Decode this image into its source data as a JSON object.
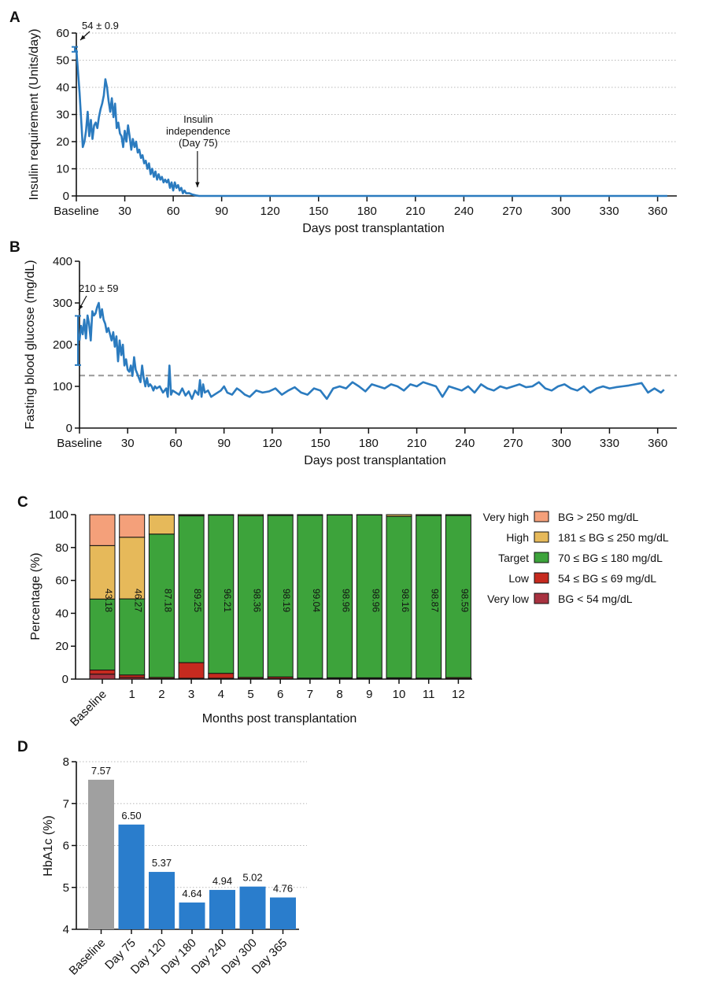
{
  "chart_data": [
    {
      "panel": "A",
      "type": "line",
      "xlabel": "Days post transplantation",
      "ylabel": "Insulin requirement (Units/day)",
      "ylim": [
        0,
        60
      ],
      "yticks": [
        0,
        10,
        20,
        30,
        40,
        50,
        60
      ],
      "xticks": [
        {
          "value": 0,
          "label": "Baseline"
        },
        {
          "value": 30,
          "label": "30"
        },
        {
          "value": 60,
          "label": "60"
        },
        {
          "value": 90,
          "label": "90"
        },
        {
          "value": 120,
          "label": "120"
        },
        {
          "value": 150,
          "label": "150"
        },
        {
          "value": 180,
          "label": "180"
        },
        {
          "value": 210,
          "label": "210"
        },
        {
          "value": 240,
          "label": "240"
        },
        {
          "value": 270,
          "label": "270"
        },
        {
          "value": 300,
          "label": "300"
        },
        {
          "value": 330,
          "label": "330"
        },
        {
          "value": 360,
          "label": "360"
        }
      ],
      "xlim": [
        0,
        368
      ],
      "grid": "horizontal-dotted",
      "color": "#2b7bbf",
      "baseline": {
        "mean": 54,
        "error": 0.9,
        "label": "54 ± 0.9"
      },
      "annotation": {
        "lines": [
          "Insulin",
          "independence",
          "(Day 75)"
        ],
        "x": 75
      },
      "series": {
        "x": [
          0,
          2,
          4,
          5,
          6,
          7,
          8,
          9,
          10,
          11,
          12,
          13,
          14,
          15,
          16,
          17,
          18,
          19,
          20,
          21,
          22,
          23,
          24,
          25,
          26,
          27,
          28,
          29,
          30,
          31,
          32,
          33,
          34,
          35,
          36,
          37,
          38,
          39,
          40,
          41,
          42,
          43,
          44,
          45,
          46,
          47,
          48,
          49,
          50,
          51,
          52,
          53,
          54,
          55,
          56,
          57,
          58,
          59,
          60,
          61,
          62,
          63,
          64,
          65,
          66,
          67,
          68,
          69,
          70,
          72,
          74,
          76,
          80,
          100,
          150,
          200,
          250,
          300,
          350,
          366
        ],
        "y": [
          54,
          38,
          18,
          20,
          24,
          31,
          22,
          28,
          21,
          26,
          27,
          25,
          29,
          32,
          34,
          37,
          43,
          40,
          35,
          31,
          36,
          29,
          34,
          25,
          27,
          23,
          22,
          18,
          24,
          20,
          26,
          22,
          17,
          21,
          18,
          20,
          16,
          17,
          14,
          15,
          12,
          13,
          10,
          12,
          8,
          10,
          7,
          9,
          6,
          8,
          6,
          7,
          5,
          6,
          5,
          6,
          3,
          5,
          2,
          5,
          3,
          4,
          2,
          3,
          1,
          2,
          1,
          1,
          1,
          0.5,
          0.2,
          0,
          0,
          0,
          0,
          0,
          0,
          0,
          0,
          0
        ]
      }
    },
    {
      "panel": "B",
      "type": "line",
      "xlabel": "Days post transplantation",
      "ylabel": "Fasting blood glucose (mg/dL)",
      "ylim": [
        0,
        400
      ],
      "yticks": [
        0,
        100,
        200,
        300,
        400
      ],
      "xticks": [
        {
          "value": 0,
          "label": "Baseline"
        },
        {
          "value": 30,
          "label": "30"
        },
        {
          "value": 60,
          "label": "60"
        },
        {
          "value": 90,
          "label": "90"
        },
        {
          "value": 120,
          "label": "120"
        },
        {
          "value": 150,
          "label": "150"
        },
        {
          "value": 180,
          "label": "180"
        },
        {
          "value": 210,
          "label": "210"
        },
        {
          "value": 240,
          "label": "240"
        },
        {
          "value": 270,
          "label": "270"
        },
        {
          "value": 300,
          "label": "300"
        },
        {
          "value": 330,
          "label": "330"
        },
        {
          "value": 360,
          "label": "360"
        }
      ],
      "xlim": [
        0,
        368
      ],
      "color": "#2b7bbf",
      "reference_line": 126,
      "baseline": {
        "mean": 210,
        "error": 59,
        "label": "210 ± 59"
      },
      "series": {
        "x": [
          0,
          1,
          2,
          3,
          4,
          5,
          6,
          7,
          8,
          9,
          10,
          11,
          12,
          13,
          14,
          15,
          16,
          17,
          18,
          19,
          20,
          21,
          22,
          23,
          24,
          25,
          26,
          27,
          28,
          29,
          30,
          31,
          32,
          33,
          34,
          35,
          36,
          37,
          38,
          39,
          40,
          41,
          42,
          43,
          44,
          45,
          46,
          47,
          48,
          50,
          52,
          54,
          55,
          56,
          57,
          58,
          60,
          62,
          64,
          66,
          68,
          70,
          72,
          74,
          75,
          76,
          77,
          78,
          80,
          82,
          84,
          86,
          88,
          90,
          92,
          95,
          98,
          100,
          103,
          106,
          110,
          114,
          118,
          122,
          126,
          130,
          134,
          138,
          142,
          146,
          150,
          154,
          158,
          162,
          166,
          170,
          174,
          178,
          182,
          186,
          190,
          194,
          198,
          202,
          206,
          210,
          214,
          218,
          222,
          226,
          230,
          234,
          238,
          242,
          246,
          250,
          254,
          258,
          262,
          266,
          270,
          274,
          278,
          282,
          286,
          290,
          294,
          298,
          302,
          306,
          310,
          314,
          318,
          322,
          326,
          330,
          334,
          338,
          342,
          346,
          350,
          354,
          358,
          362,
          364
        ],
        "y": [
          210,
          245,
          225,
          260,
          215,
          270,
          250,
          210,
          280,
          270,
          275,
          290,
          300,
          265,
          285,
          260,
          250,
          230,
          240,
          225,
          210,
          230,
          195,
          220,
          160,
          210,
          175,
          200,
          150,
          165,
          140,
          135,
          150,
          125,
          170,
          140,
          130,
          120,
          110,
          150,
          120,
          100,
          120,
          100,
          105,
          100,
          90,
          100,
          95,
          100,
          85,
          95,
          75,
          150,
          80,
          90,
          85,
          80,
          95,
          78,
          88,
          70,
          90,
          80,
          115,
          75,
          105,
          85,
          90,
          75,
          80,
          85,
          90,
          100,
          85,
          80,
          95,
          90,
          80,
          75,
          90,
          85,
          88,
          95,
          80,
          90,
          98,
          85,
          80,
          95,
          90,
          70,
          95,
          100,
          95,
          110,
          100,
          88,
          105,
          100,
          95,
          105,
          100,
          90,
          105,
          100,
          110,
          105,
          100,
          75,
          100,
          95,
          90,
          100,
          85,
          105,
          95,
          90,
          100,
          95,
          100,
          105,
          98,
          100,
          110,
          95,
          90,
          100,
          105,
          95,
          90,
          100,
          85,
          95,
          100,
          95,
          98,
          100,
          102,
          105,
          108,
          85,
          95,
          85,
          92
        ]
      }
    },
    {
      "panel": "C",
      "type": "bar",
      "stacked": true,
      "xlabel": "Months post transplantation",
      "ylabel": "Percentage (%)",
      "ylim": [
        0,
        100
      ],
      "yticks": [
        0,
        20,
        40,
        60,
        80,
        100
      ],
      "categories": [
        "Baseline",
        "1",
        "2",
        "3",
        "4",
        "5",
        "6",
        "7",
        "8",
        "9",
        "10",
        "11",
        "12"
      ],
      "target_labels": [
        "43.18",
        "46.27",
        "87.18",
        "89.25",
        "96.21",
        "98.36",
        "98.19",
        "99.04",
        "98.96",
        "98.96",
        "98.16",
        "98.87",
        "98.59"
      ],
      "legend_position": "right",
      "series": [
        {
          "name": "Very low",
          "range": "BG < 54 mg/dL",
          "color": "#a83240",
          "values": [
            3,
            1,
            0.3,
            0.5,
            0.5,
            0.3,
            0.3,
            0.3,
            0.3,
            0.3,
            0.3,
            0.3,
            0.3
          ]
        },
        {
          "name": "Low",
          "range": "54 ≤ BG ≤ 69 mg/dL",
          "color": "#c62a1f",
          "values": [
            2.5,
            1.5,
            0.7,
            9.5,
            3,
            0.7,
            1,
            0.3,
            0.5,
            0.5,
            0.5,
            0.3,
            0.6
          ]
        },
        {
          "name": "Target",
          "range": "70 ≤ BG ≤ 180 mg/dL",
          "color": "#3da33b",
          "values": [
            43.18,
            46.27,
            87.18,
            89.25,
            96.21,
            98.36,
            98.19,
            99.04,
            98.96,
            98.96,
            98.16,
            98.87,
            98.59
          ]
        },
        {
          "name": "High",
          "range": "181 ≤ BG ≤ 250 mg/dL",
          "color": "#e6b95a",
          "values": [
            32.5,
            37.5,
            11.8,
            0.7,
            0.29,
            0.64,
            0.51,
            0.36,
            0.24,
            0.24,
            1.04,
            0.53,
            0.51
          ]
        },
        {
          "name": "Very high",
          "range": "BG > 250 mg/dL",
          "color": "#f4a07a",
          "values": [
            18.82,
            13.73,
            0.02,
            0.05,
            0,
            0,
            0,
            0,
            0,
            0,
            0,
            0,
            0
          ]
        }
      ]
    },
    {
      "panel": "D",
      "type": "bar",
      "xlabel": "",
      "ylabel": "HbA1c (%)",
      "ylim": [
        4,
        8
      ],
      "yticks": [
        4,
        5,
        6,
        7,
        8
      ],
      "categories": [
        "Baseline",
        "Day 75",
        "Day 120",
        "Day 180",
        "Day 240",
        "Day 300",
        "Day 365"
      ],
      "values": [
        7.57,
        6.5,
        5.37,
        4.64,
        4.94,
        5.02,
        4.76
      ],
      "labels": [
        "7.57",
        "6.50",
        "5.37",
        "4.64",
        "4.94",
        "5.02",
        "4.76"
      ],
      "colors": [
        "#a0a0a0",
        "#2a7dcc",
        "#2a7dcc",
        "#2a7dcc",
        "#2a7dcc",
        "#2a7dcc",
        "#2a7dcc"
      ],
      "grid": "horizontal-dotted"
    }
  ]
}
